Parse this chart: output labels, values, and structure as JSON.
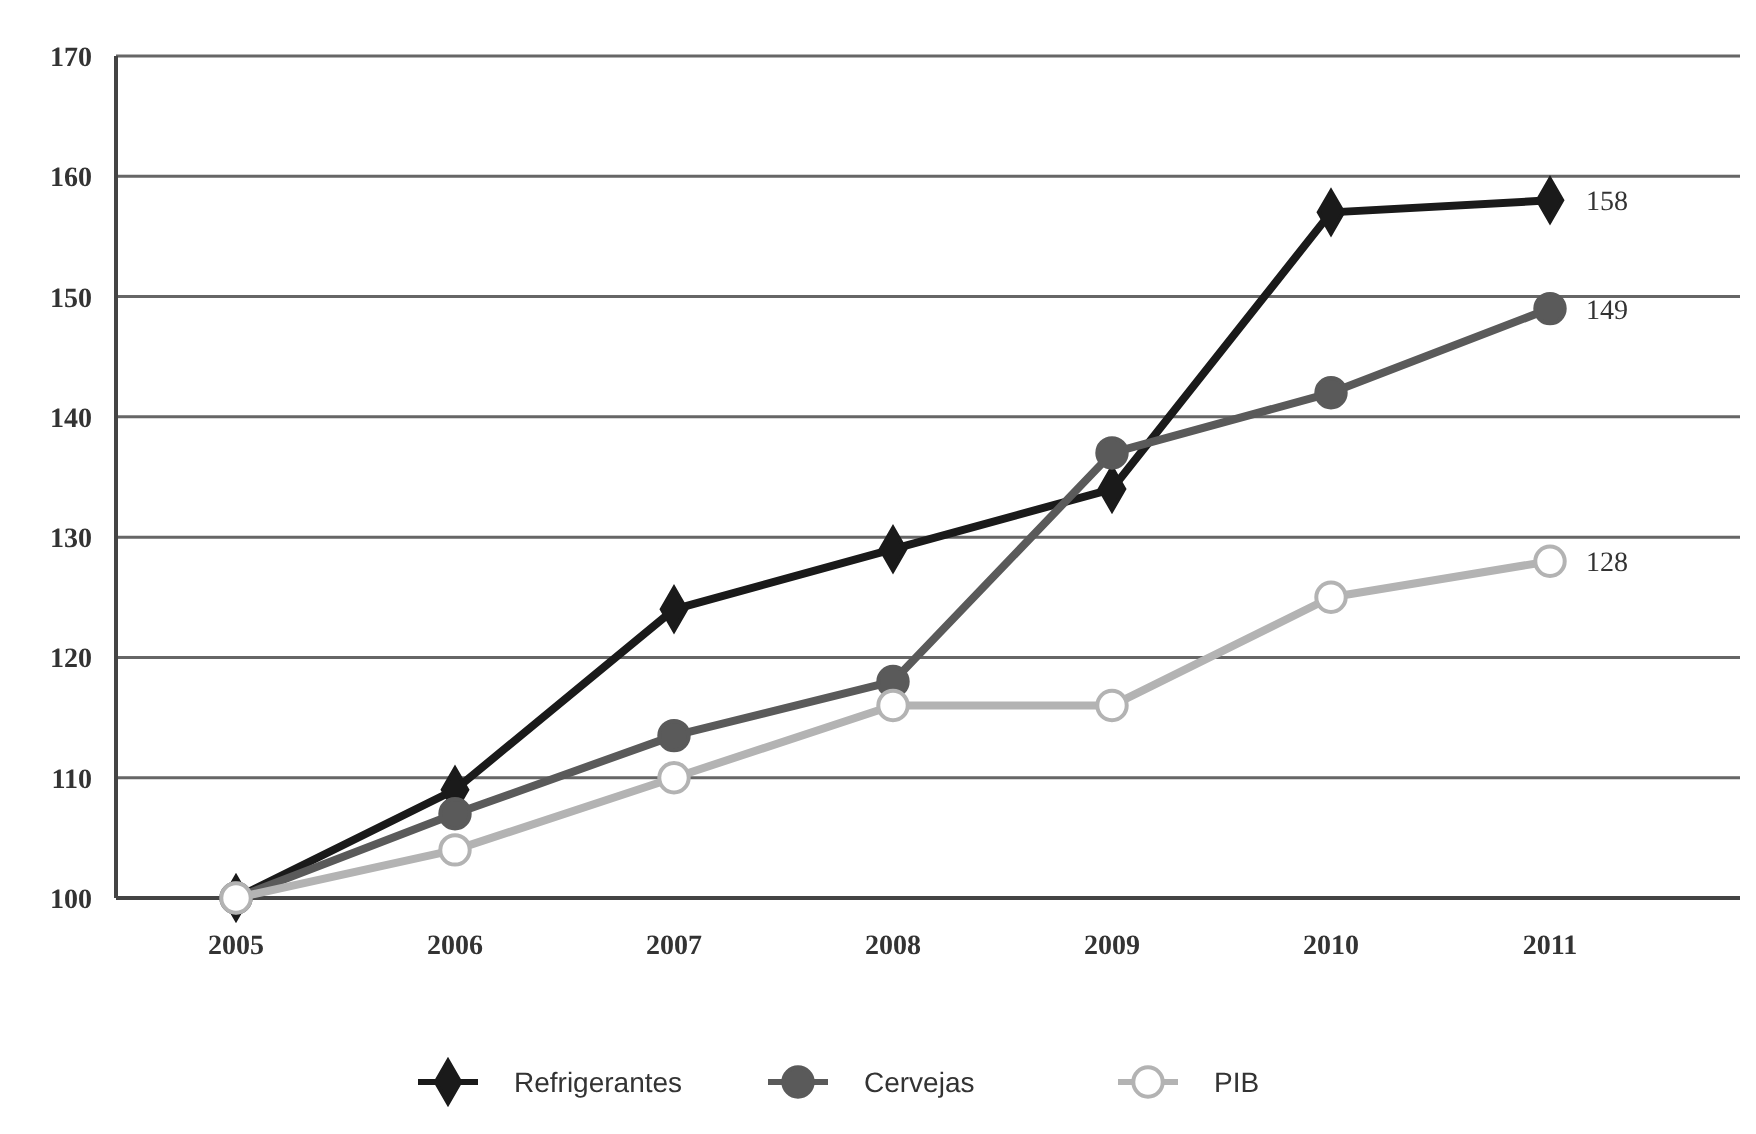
{
  "chart_data": {
    "type": "line",
    "categories": [
      "2005",
      "2006",
      "2007",
      "2008",
      "2009",
      "2010",
      "2011"
    ],
    "ylim": [
      100,
      170
    ],
    "yticks": [
      100,
      110,
      120,
      130,
      140,
      150,
      160,
      170
    ],
    "grid": "y",
    "legend": "bottom",
    "series": [
      {
        "name": "Refrigerantes",
        "color": "#1a1a1a",
        "marker": "diamond",
        "values": [
          100,
          109,
          124,
          129,
          134,
          157,
          158
        ],
        "value_labels": [
          null,
          null,
          null,
          null,
          null,
          null,
          "158"
        ]
      },
      {
        "name": "Cervejas",
        "color": "#5a5a5a",
        "marker": "circle",
        "values": [
          100,
          107,
          113.5,
          118,
          137,
          142,
          149
        ],
        "value_labels": [
          null,
          null,
          null,
          null,
          null,
          null,
          "149"
        ]
      },
      {
        "name": "PIB",
        "color": "#b3b3b3",
        "marker": "circle",
        "values": [
          100,
          104,
          110,
          116,
          116,
          125,
          128
        ],
        "value_labels": [
          null,
          null,
          null,
          null,
          null,
          null,
          "128"
        ]
      }
    ]
  }
}
